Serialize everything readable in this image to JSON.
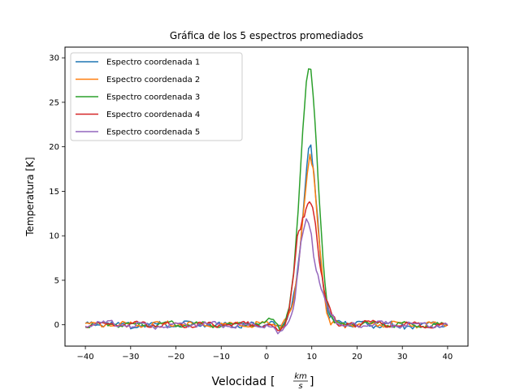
{
  "chart_data": {
    "type": "line",
    "title": "Gráfica de los 5 espectros promediados",
    "xlabel": "Velocidad",
    "xlabel_unit_num": "km",
    "xlabel_unit_den": "s",
    "ylabel": "Temperatura [K]",
    "xlim": [
      -44.5,
      44.5
    ],
    "ylim": [
      -2.4,
      31.2
    ],
    "xticks": [
      -40,
      -30,
      -20,
      -10,
      0,
      10,
      20,
      30,
      40
    ],
    "xtick_labels": [
      "−40",
      "−30",
      "−20",
      "−10",
      "0",
      "10",
      "20",
      "30",
      "40"
    ],
    "yticks": [
      0,
      5,
      10,
      15,
      20,
      25,
      30
    ],
    "ytick_labels": [
      "0",
      "5",
      "10",
      "15",
      "20",
      "25",
      "30"
    ],
    "grid": false,
    "legend_position": "top-left",
    "series": [
      {
        "name": "Espectro coordenada 1",
        "color": "#1f77b4",
        "points": [
          [
            -40,
            0.0
          ],
          [
            -36,
            0.1
          ],
          [
            -30,
            -0.1
          ],
          [
            -20,
            0.1
          ],
          [
            -10,
            0.0
          ],
          [
            -6,
            -0.1
          ],
          [
            -2,
            0.1
          ],
          [
            0,
            0.0
          ],
          [
            1.5,
            0.1
          ],
          [
            2.5,
            -0.3
          ],
          [
            3.5,
            -0.2
          ],
          [
            4.5,
            0.5
          ],
          [
            5.5,
            2.0
          ],
          [
            6.5,
            4.5
          ],
          [
            7.5,
            9.0
          ],
          [
            8.5,
            15.5
          ],
          [
            9.3,
            19.5
          ],
          [
            9.8,
            20.0
          ],
          [
            10.5,
            17.0
          ],
          [
            11.3,
            12.0
          ],
          [
            12.0,
            7.0
          ],
          [
            12.8,
            3.0
          ],
          [
            13.8,
            1.0
          ],
          [
            15,
            0.3
          ],
          [
            17,
            0.0
          ],
          [
            20,
            0.1
          ],
          [
            25,
            -0.1
          ],
          [
            28,
            0.1
          ],
          [
            30,
            -0.2
          ],
          [
            35,
            0.0
          ],
          [
            40,
            0.0
          ]
        ]
      },
      {
        "name": "Espectro coordenada 2",
        "color": "#ff7f0e",
        "points": [
          [
            -40,
            0.0
          ],
          [
            -35,
            0.1
          ],
          [
            -30,
            0.0
          ],
          [
            -20,
            0.1
          ],
          [
            -10,
            0.0
          ],
          [
            -5,
            0.0
          ],
          [
            0,
            0.1
          ],
          [
            2,
            -0.2
          ],
          [
            3,
            -0.5
          ],
          [
            4,
            0.3
          ],
          [
            5,
            1.0
          ],
          [
            6,
            3.0
          ],
          [
            7,
            6.5
          ],
          [
            8,
            12.0
          ],
          [
            9,
            17.0
          ],
          [
            9.6,
            18.9
          ],
          [
            10.3,
            17.5
          ],
          [
            11,
            13.5
          ],
          [
            11.8,
            8.5
          ],
          [
            12.5,
            4.5
          ],
          [
            13.3,
            1.5
          ],
          [
            14.2,
            0.3
          ],
          [
            16,
            0.0
          ],
          [
            20,
            0.0
          ],
          [
            25,
            0.1
          ],
          [
            30,
            0.0
          ],
          [
            35,
            0.0
          ],
          [
            40,
            0.0
          ]
        ]
      },
      {
        "name": "Espectro coordenada 3",
        "color": "#2ca02c",
        "points": [
          [
            -40,
            0.0
          ],
          [
            -35,
            0.1
          ],
          [
            -30,
            0.0
          ],
          [
            -20,
            0.1
          ],
          [
            -10,
            0.0
          ],
          [
            -5,
            0.1
          ],
          [
            0,
            0.2
          ],
          [
            1,
            0.6
          ],
          [
            2,
            0.2
          ],
          [
            3,
            -0.4
          ],
          [
            4,
            0.4
          ],
          [
            5,
            2.0
          ],
          [
            6,
            6.0
          ],
          [
            7,
            13.0
          ],
          [
            8,
            22.0
          ],
          [
            8.8,
            27.5
          ],
          [
            9.3,
            29.1
          ],
          [
            9.8,
            29.0
          ],
          [
            10.3,
            26.0
          ],
          [
            11,
            20.0
          ],
          [
            11.8,
            13.0
          ],
          [
            12.5,
            7.0
          ],
          [
            13.3,
            3.0
          ],
          [
            14,
            1.0
          ],
          [
            15,
            0.2
          ],
          [
            17,
            0.0
          ],
          [
            20,
            0.0
          ],
          [
            25,
            0.1
          ],
          [
            30,
            0.0
          ],
          [
            35,
            0.0
          ],
          [
            40,
            0.0
          ]
        ]
      },
      {
        "name": "Espectro coordenada 4",
        "color": "#d62728",
        "points": [
          [
            -40,
            0.0
          ],
          [
            -35,
            0.0
          ],
          [
            -30,
            0.1
          ],
          [
            -20,
            0.0
          ],
          [
            -10,
            0.0
          ],
          [
            -5,
            0.1
          ],
          [
            0,
            0.0
          ],
          [
            2,
            0.0
          ],
          [
            3,
            -0.6
          ],
          [
            4,
            0.0
          ],
          [
            5,
            2.0
          ],
          [
            6,
            6.0
          ],
          [
            6.8,
            10.0
          ],
          [
            7.5,
            11.0
          ],
          [
            8,
            12.0
          ],
          [
            8.7,
            12.8
          ],
          [
            9.5,
            13.8
          ],
          [
            10.2,
            13.5
          ],
          [
            10.8,
            11.5
          ],
          [
            11.3,
            9.0
          ],
          [
            12,
            6.0
          ],
          [
            12.7,
            4.0
          ],
          [
            13.5,
            2.5
          ],
          [
            14.5,
            1.0
          ],
          [
            15.5,
            0.3
          ],
          [
            17,
            0.0
          ],
          [
            20,
            0.0
          ],
          [
            23,
            0.2
          ],
          [
            25,
            0.0
          ],
          [
            30,
            0.0
          ],
          [
            35,
            0.0
          ],
          [
            40,
            -0.1
          ]
        ]
      },
      {
        "name": "Espectro coordenada 5",
        "color": "#9467bd",
        "points": [
          [
            -40,
            0.0
          ],
          [
            -36,
            0.2
          ],
          [
            -30,
            0.0
          ],
          [
            -25,
            -0.2
          ],
          [
            -20,
            0.0
          ],
          [
            -15,
            0.1
          ],
          [
            -10,
            0.0
          ],
          [
            -5,
            -0.1
          ],
          [
            0,
            0.0
          ],
          [
            1.5,
            -0.1
          ],
          [
            2.5,
            -0.8
          ],
          [
            3.5,
            -0.3
          ],
          [
            4.5,
            0.2
          ],
          [
            5.5,
            1.0
          ],
          [
            6.3,
            3.0
          ],
          [
            7,
            6.0
          ],
          [
            7.6,
            9.0
          ],
          [
            8.2,
            11.0
          ],
          [
            8.8,
            12.2
          ],
          [
            9.3,
            11.5
          ],
          [
            9.9,
            10.0
          ],
          [
            10.4,
            7.5
          ],
          [
            11,
            6.0
          ],
          [
            11.7,
            5.0
          ],
          [
            12.5,
            3.5
          ],
          [
            13.3,
            2.0
          ],
          [
            14.3,
            1.0
          ],
          [
            15.5,
            0.3
          ],
          [
            17,
            0.0
          ],
          [
            20,
            0.0
          ],
          [
            25,
            0.1
          ],
          [
            30,
            0.0
          ],
          [
            35,
            0.0
          ],
          [
            40,
            0.0
          ]
        ]
      }
    ]
  }
}
